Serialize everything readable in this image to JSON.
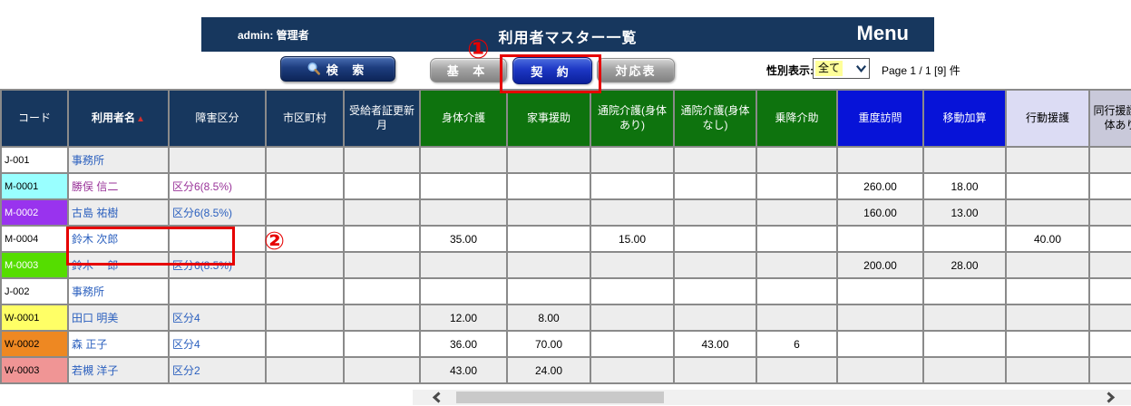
{
  "colors": {
    "header_navy": "#17375E",
    "header_green": "#0E730E",
    "header_blue": "#0713D8",
    "header_lavender": "#DCDCF4",
    "header_gray": "#C9C9DA",
    "annotation_red": "#E60000",
    "link_blue": "#2A5FBE",
    "link_visited": "#993399",
    "row_alt": "#EDEDED",
    "grid_border": "#8A8A8A"
  },
  "header": {
    "admin_label": "admin: 管理者",
    "title": "利用者マスター一覧",
    "menu_label": "Menu"
  },
  "toolbar": {
    "search_label": "検 索",
    "tab_basic": "基 本",
    "tab_contract": "契 約",
    "tab_mapping": "対応表",
    "gender_filter_label": "性別表示:",
    "gender_filter_value": "全て",
    "page_info": "Page 1 / 1 [9] 件"
  },
  "annotations": {
    "step1": "①",
    "step2": "②"
  },
  "table": {
    "columns": [
      {
        "label": "コード",
        "group": "navy"
      },
      {
        "label": "利用者名",
        "group": "navy",
        "bold": true,
        "sort": "▲"
      },
      {
        "label": "障害区分",
        "group": "navy"
      },
      {
        "label": "市区町村",
        "group": "navy"
      },
      {
        "label": "受給者証更新月",
        "group": "navy"
      },
      {
        "label": "身体介護",
        "group": "green"
      },
      {
        "label": "家事援助",
        "group": "green"
      },
      {
        "label": "通院介護(身体あり)",
        "group": "green"
      },
      {
        "label": "通院介護(身体なし)",
        "group": "green"
      },
      {
        "label": "乗降介助",
        "group": "green"
      },
      {
        "label": "重度訪問",
        "group": "blue"
      },
      {
        "label": "移動加算",
        "group": "blue"
      },
      {
        "label": "行動援護",
        "group": "lavender"
      },
      {
        "label": "同行援護(身体あり)",
        "group": "gray"
      }
    ],
    "rows": [
      {
        "code": "J-001",
        "code_bg": "#FFFFFF",
        "code_fg": "#000000",
        "name": "事務所",
        "link_state": "normal",
        "category": "",
        "values": [
          "",
          "",
          "",
          "",
          "",
          "",
          "",
          "",
          ""
        ]
      },
      {
        "code": "M-0001",
        "code_bg": "#99FFFF",
        "code_fg": "#000000",
        "name": "勝俣 信二",
        "link_state": "visited",
        "category": "区分6(8.5%)",
        "values": [
          "",
          "",
          "",
          "",
          "",
          "260.00",
          "18.00",
          "",
          ""
        ]
      },
      {
        "code": "M-0002",
        "code_bg": "#9933EE",
        "code_fg": "#FFFFFF",
        "name": "古島 祐樹",
        "link_state": "normal",
        "category": "区分6(8.5%)",
        "values": [
          "",
          "",
          "",
          "",
          "",
          "160.00",
          "13.00",
          "",
          ""
        ]
      },
      {
        "code": "M-0004",
        "code_bg": "#FFFFFF",
        "code_fg": "#000000",
        "name": "鈴木 次郎",
        "link_state": "normal",
        "category": "",
        "values": [
          "35.00",
          "",
          "15.00",
          "",
          "",
          "",
          "",
          "40.00",
          ""
        ]
      },
      {
        "code": "M-0003",
        "code_bg": "#55DD00",
        "code_fg": "#FFFFFF",
        "name": "鈴木 一郎",
        "link_state": "normal",
        "category": "区分6(8.5%)",
        "values": [
          "",
          "",
          "",
          "",
          "",
          "200.00",
          "28.00",
          "",
          ""
        ]
      },
      {
        "code": "J-002",
        "code_bg": "#FFFFFF",
        "code_fg": "#000000",
        "name": "事務所",
        "link_state": "normal",
        "category": "",
        "values": [
          "",
          "",
          "",
          "",
          "",
          "",
          "",
          "",
          ""
        ]
      },
      {
        "code": "W-0001",
        "code_bg": "#FFFF66",
        "code_fg": "#000000",
        "name": "田口 明美",
        "link_state": "normal",
        "category": "区分4",
        "values": [
          "12.00",
          "8.00",
          "",
          "",
          "",
          "",
          "",
          "",
          ""
        ]
      },
      {
        "code": "W-0002",
        "code_bg": "#EE8822",
        "code_fg": "#000000",
        "name": "森 正子",
        "link_state": "normal",
        "category": "区分4",
        "values": [
          "36.00",
          "70.00",
          "",
          "43.00",
          "6",
          "",
          "",
          "",
          ""
        ]
      },
      {
        "code": "W-0003",
        "code_bg": "#F09595",
        "code_fg": "#000000",
        "name": "若槻 洋子",
        "link_state": "normal",
        "category": "区分2",
        "values": [
          "43.00",
          "24.00",
          "",
          "",
          "",
          "",
          "",
          "",
          ""
        ]
      }
    ]
  }
}
